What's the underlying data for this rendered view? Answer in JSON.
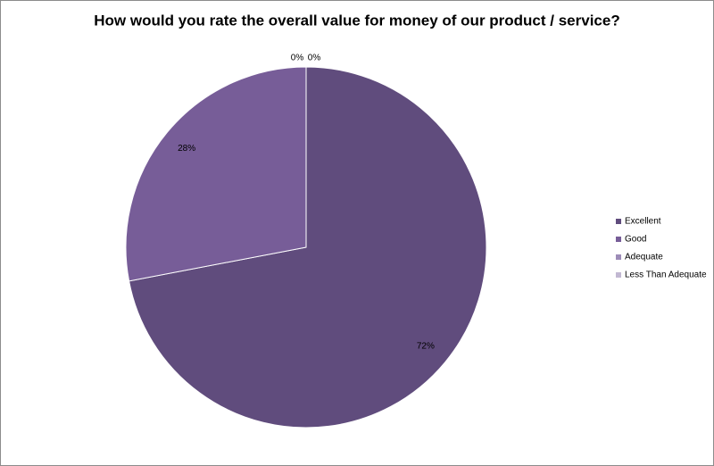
{
  "chart_data": {
    "type": "pie",
    "title": "How would you rate the overall value for money of our product / service?",
    "categories": [
      "Excellent",
      "Good",
      "Adequate",
      "Less Than Adequate"
    ],
    "values": [
      72,
      28,
      0,
      0
    ],
    "value_labels": [
      "72%",
      "28%",
      "0%",
      "0%"
    ],
    "colors": [
      "#604c7d",
      "#775d98",
      "#9d8cb8",
      "#c2b8d2"
    ],
    "legend": "right"
  }
}
